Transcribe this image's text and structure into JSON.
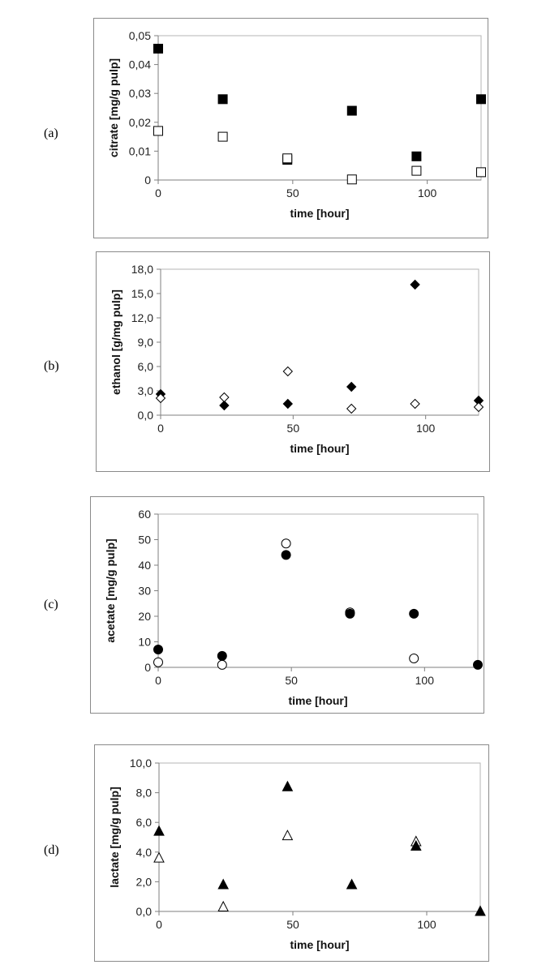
{
  "panels": [
    {
      "label": "(a)"
    },
    {
      "label": "(b)"
    },
    {
      "label": "(c)"
    },
    {
      "label": "(d)"
    }
  ],
  "chart_data": [
    {
      "type": "scatter",
      "xlabel": "time [hour]",
      "ylabel": "citrate [mg/g pulp]",
      "xlim": [
        0,
        120
      ],
      "ylim": [
        0,
        0.05
      ],
      "x_ticks": [
        0,
        50,
        100
      ],
      "y_ticks": [
        0,
        0.01,
        0.02,
        0.03,
        0.04,
        0.05
      ],
      "x_tick_labels": [
        "0",
        "50",
        "100"
      ],
      "y_tick_labels": [
        "0",
        "0,01",
        "0,02",
        "0,03",
        "0,04",
        "0,05"
      ],
      "grid": false,
      "series": [
        {
          "marker": "square",
          "fill": "#000000",
          "x": [
            0,
            24,
            48,
            72,
            96,
            120
          ],
          "y": [
            0.0455,
            0.028,
            0.007,
            0.024,
            0.0082,
            0.028
          ]
        },
        {
          "marker": "square",
          "fill": "#ffffff",
          "x": [
            0,
            24,
            48,
            72,
            96,
            120
          ],
          "y": [
            0.017,
            0.015,
            0.0075,
            0.0002,
            0.0032,
            0.0027
          ]
        }
      ]
    },
    {
      "type": "scatter",
      "xlabel": "time [hour]",
      "ylabel": "ethanol [g/mg pulp]",
      "xlim": [
        0,
        120
      ],
      "ylim": [
        0,
        18
      ],
      "x_ticks": [
        0,
        50,
        100
      ],
      "y_ticks": [
        0,
        3,
        6,
        9,
        12,
        15,
        18
      ],
      "x_tick_labels": [
        "0",
        "50",
        "100"
      ],
      "y_tick_labels": [
        "0,0",
        "3,0",
        "6,0",
        "9,0",
        "12,0",
        "15,0",
        "18,0"
      ],
      "grid": false,
      "series": [
        {
          "marker": "diamond",
          "fill": "#000000",
          "x": [
            0,
            24,
            48,
            72,
            96,
            120
          ],
          "y": [
            2.6,
            1.2,
            1.4,
            3.5,
            16.1,
            1.8
          ]
        },
        {
          "marker": "diamond",
          "fill": "#ffffff",
          "x": [
            0,
            24,
            48,
            72,
            96,
            120
          ],
          "y": [
            2.1,
            2.2,
            5.4,
            0.8,
            1.4,
            1.0
          ]
        }
      ]
    },
    {
      "type": "scatter",
      "xlabel": "time [hour]",
      "ylabel": "acetate [mg/g pulp]",
      "xlim": [
        0,
        120
      ],
      "ylim": [
        0,
        60
      ],
      "x_ticks": [
        0,
        50,
        100
      ],
      "y_ticks": [
        0,
        10,
        20,
        30,
        40,
        50,
        60
      ],
      "x_tick_labels": [
        "0",
        "50",
        "100"
      ],
      "y_tick_labels": [
        "0",
        "10",
        "20",
        "30",
        "40",
        "50",
        "60"
      ],
      "grid": false,
      "series": [
        {
          "marker": "circle",
          "fill": "#ffffff",
          "x": [
            0,
            24,
            48,
            72,
            96
          ],
          "y": [
            2,
            1,
            48.5,
            21.5,
            3.5
          ]
        },
        {
          "marker": "circle",
          "fill": "#000000",
          "x": [
            0,
            24,
            48,
            72,
            96,
            120
          ],
          "y": [
            7,
            4.5,
            44,
            21,
            21,
            1
          ]
        }
      ]
    },
    {
      "type": "scatter",
      "xlabel": "time [hour]",
      "ylabel": "lactate [mg/g pulp]",
      "xlim": [
        0,
        120
      ],
      "ylim": [
        0,
        10
      ],
      "x_ticks": [
        0,
        50,
        100
      ],
      "y_ticks": [
        0,
        2,
        4,
        6,
        8,
        10
      ],
      "x_tick_labels": [
        "0",
        "50",
        "100"
      ],
      "y_tick_labels": [
        "0,0",
        "2,0",
        "4,0",
        "6,0",
        "8,0",
        "10,0"
      ],
      "grid": false,
      "series": [
        {
          "marker": "triangle",
          "fill": "#ffffff",
          "x": [
            0,
            24,
            48,
            96
          ],
          "y": [
            3.6,
            0.3,
            5.1,
            4.7
          ]
        },
        {
          "marker": "triangle",
          "fill": "#000000",
          "x": [
            0,
            24,
            48,
            72,
            96,
            120
          ],
          "y": [
            5.4,
            1.8,
            8.4,
            1.8,
            4.4,
            0
          ]
        }
      ]
    }
  ]
}
